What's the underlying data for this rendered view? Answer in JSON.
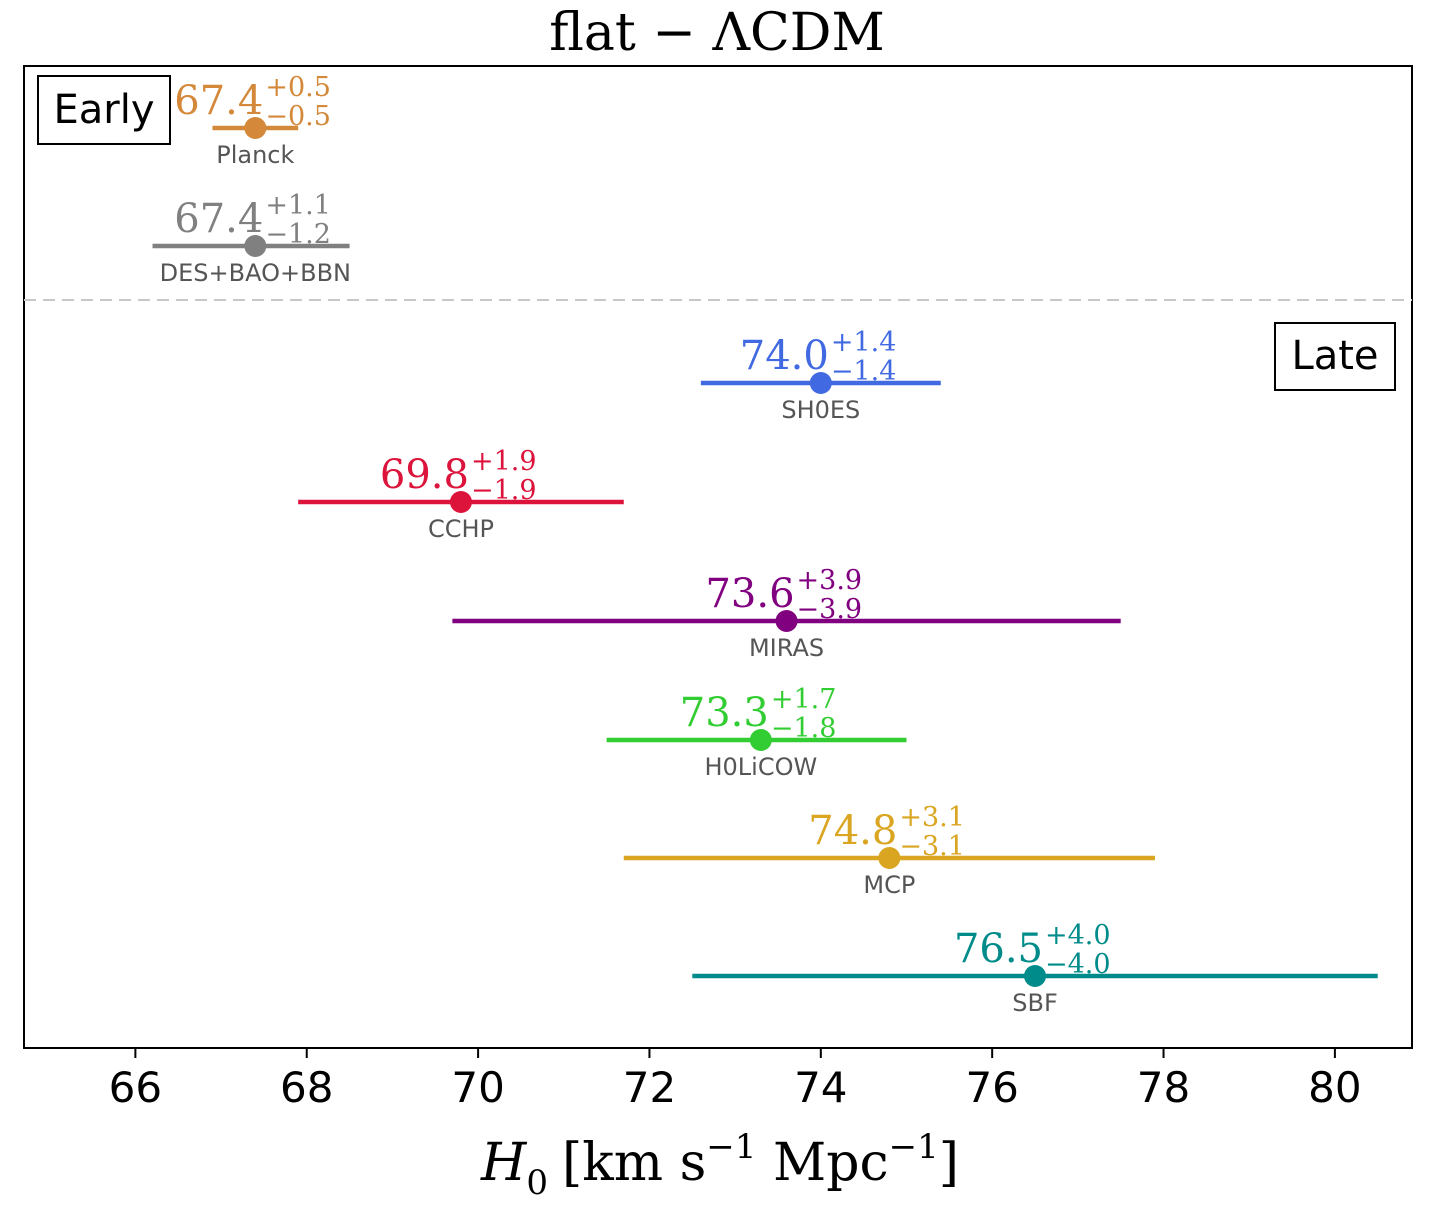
{
  "chart_data": {
    "type": "scatter",
    "title": "flat − ΛCDM",
    "xlabel": {
      "symbol": "H",
      "subscript": "0",
      "unit_open": "[km s",
      "unit_exp1": "−1",
      "unit_mid": " Mpc",
      "unit_exp2": "−1",
      "unit_close": "]"
    },
    "ylabel": "",
    "xlim": [
      64.7,
      80.9
    ],
    "xticks": [
      66,
      68,
      70,
      72,
      74,
      76,
      78,
      80
    ],
    "xtick_labels": [
      "66",
      "68",
      "70",
      "72",
      "74",
      "76",
      "78",
      "80"
    ],
    "grid": false,
    "groups": [
      {
        "label": "Early",
        "placement": "top-left"
      },
      {
        "label": "Late",
        "placement": "right"
      }
    ],
    "separator": "dashed line between Early and Late",
    "series": [
      {
        "name": "Planck",
        "group": "Early",
        "value": "67.4",
        "plus": "+0.5",
        "minus": "−0.5",
        "x": 67.4,
        "err_plus": 0.5,
        "err_minus": 0.5,
        "color": "#d4883a"
      },
      {
        "name": "DES+BAO+BBN",
        "group": "Early",
        "value": "67.4",
        "plus": "+1.1",
        "minus": "−1.2",
        "x": 67.4,
        "err_plus": 1.1,
        "err_minus": 1.2,
        "color": "#808080"
      },
      {
        "name": "SH0ES",
        "group": "Late",
        "value": "74.0",
        "plus": "+1.4",
        "minus": "−1.4",
        "x": 74.0,
        "err_plus": 1.4,
        "err_minus": 1.4,
        "color": "#4169e1"
      },
      {
        "name": "CCHP",
        "group": "Late",
        "value": "69.8",
        "plus": "+1.9",
        "minus": "−1.9",
        "x": 69.8,
        "err_plus": 1.9,
        "err_minus": 1.9,
        "color": "#dc143c"
      },
      {
        "name": "MIRAS",
        "group": "Late",
        "value": "73.6",
        "plus": "+3.9",
        "minus": "−3.9",
        "x": 73.6,
        "err_plus": 3.9,
        "err_minus": 3.9,
        "color": "#800080"
      },
      {
        "name": "H0LiCOW",
        "group": "Late",
        "value": "73.3",
        "plus": "+1.7",
        "minus": "−1.8",
        "x": 73.3,
        "err_plus": 1.7,
        "err_minus": 1.8,
        "color": "#32cd32"
      },
      {
        "name": "MCP",
        "group": "Late",
        "value": "74.8",
        "plus": "+3.1",
        "minus": "−3.1",
        "x": 74.8,
        "err_plus": 3.1,
        "err_minus": 3.1,
        "color": "#daa520"
      },
      {
        "name": "SBF",
        "group": "Late",
        "value": "76.5",
        "plus": "+4.0",
        "minus": "−4.0",
        "x": 76.5,
        "err_plus": 4.0,
        "err_minus": 4.0,
        "color": "#008b8b"
      }
    ]
  }
}
